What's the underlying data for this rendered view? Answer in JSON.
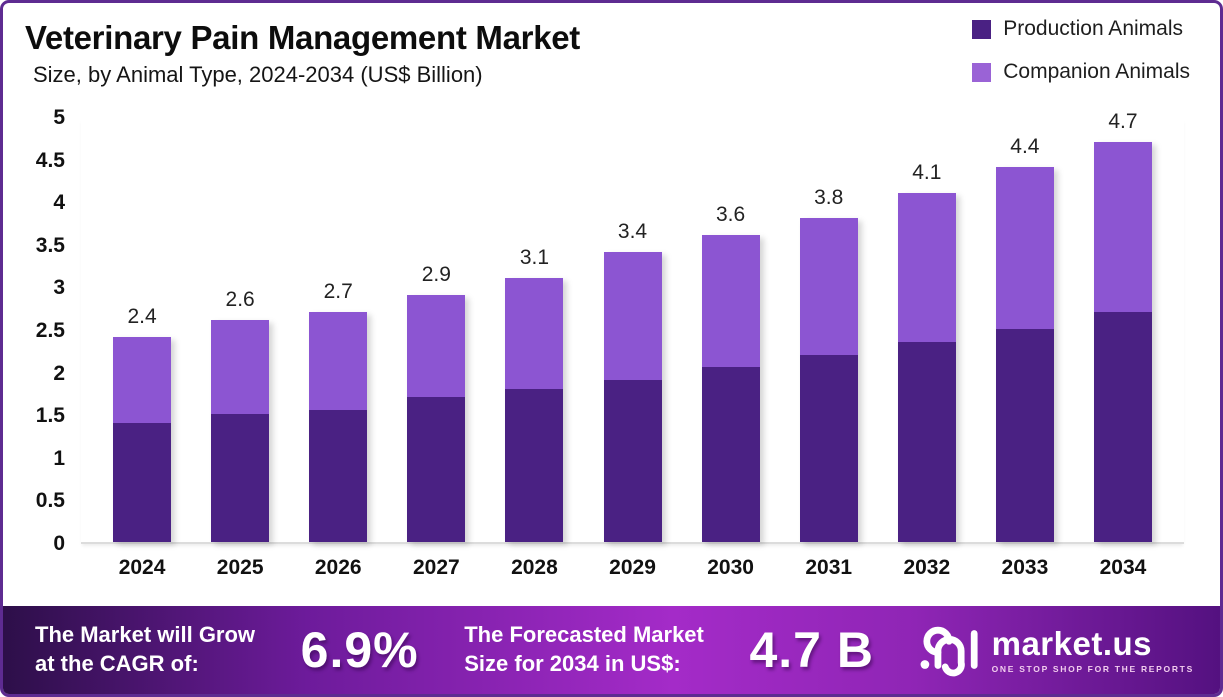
{
  "header": {
    "title": "Veterinary Pain Management Market",
    "subtitle": "Size, by Animal Type, 2024-2034 (US$ Billion)"
  },
  "legend": {
    "items": [
      {
        "label": "Production Animals",
        "color": "#4A2183"
      },
      {
        "label": "Companion Animals",
        "color": "#9A63D6"
      }
    ]
  },
  "chart_data": {
    "type": "bar",
    "stacked": true,
    "title": "Veterinary Pain Management Market",
    "subtitle": "Size, by Animal Type, 2024-2034 (US$ Billion)",
    "xlabel": "",
    "ylabel": "US$ Billion",
    "categories": [
      "2024",
      "2025",
      "2026",
      "2027",
      "2028",
      "2029",
      "2030",
      "2031",
      "2032",
      "2033",
      "2034"
    ],
    "series": [
      {
        "name": "Production Animals",
        "color": "#4A2183",
        "values": [
          1.4,
          1.5,
          1.55,
          1.7,
          1.8,
          1.9,
          2.05,
          2.2,
          2.35,
          2.5,
          2.7
        ]
      },
      {
        "name": "Companion Animals",
        "color": "#8C55D2",
        "values": [
          1.0,
          1.1,
          1.15,
          1.2,
          1.3,
          1.5,
          1.55,
          1.6,
          1.75,
          1.9,
          2.0
        ]
      }
    ],
    "totals": [
      2.4,
      2.6,
      2.7,
      2.9,
      3.1,
      3.4,
      3.6,
      3.8,
      4.1,
      4.4,
      4.7
    ],
    "total_labels": [
      "2.4",
      "2.6",
      "2.7",
      "2.9",
      "3.1",
      "3.4",
      "3.6",
      "3.8",
      "4.1",
      "4.4",
      "4.7"
    ],
    "ylim": [
      0,
      5
    ],
    "yticks": [
      0,
      0.5,
      1,
      1.5,
      2,
      2.5,
      3,
      3.5,
      4,
      4.5,
      5
    ],
    "ytick_labels": [
      "0",
      "0.5",
      "1",
      "1.5",
      "2",
      "2.5",
      "3",
      "3.5",
      "4",
      "4.5",
      "5"
    ],
    "grid": false,
    "legend_position": "top-right"
  },
  "footer": {
    "cagr_label_line1": "The Market will Grow",
    "cagr_label_line2": "at the CAGR of:",
    "cagr_value": "6.9%",
    "forecast_label_line1": "The Forecasted Market",
    "forecast_label_line2": "Size for 2034 in US$:",
    "forecast_value": "4.7 B",
    "logo_text": "market.us",
    "logo_tagline": "ONE STOP SHOP FOR THE REPORTS"
  },
  "colors": {
    "border": "#5E2B91",
    "axis_line": "#DCDCDC",
    "banner_gradient": [
      "#2D0F49",
      "#6D1B9B",
      "#A42BC8",
      "#8F25B5",
      "#541180"
    ]
  }
}
